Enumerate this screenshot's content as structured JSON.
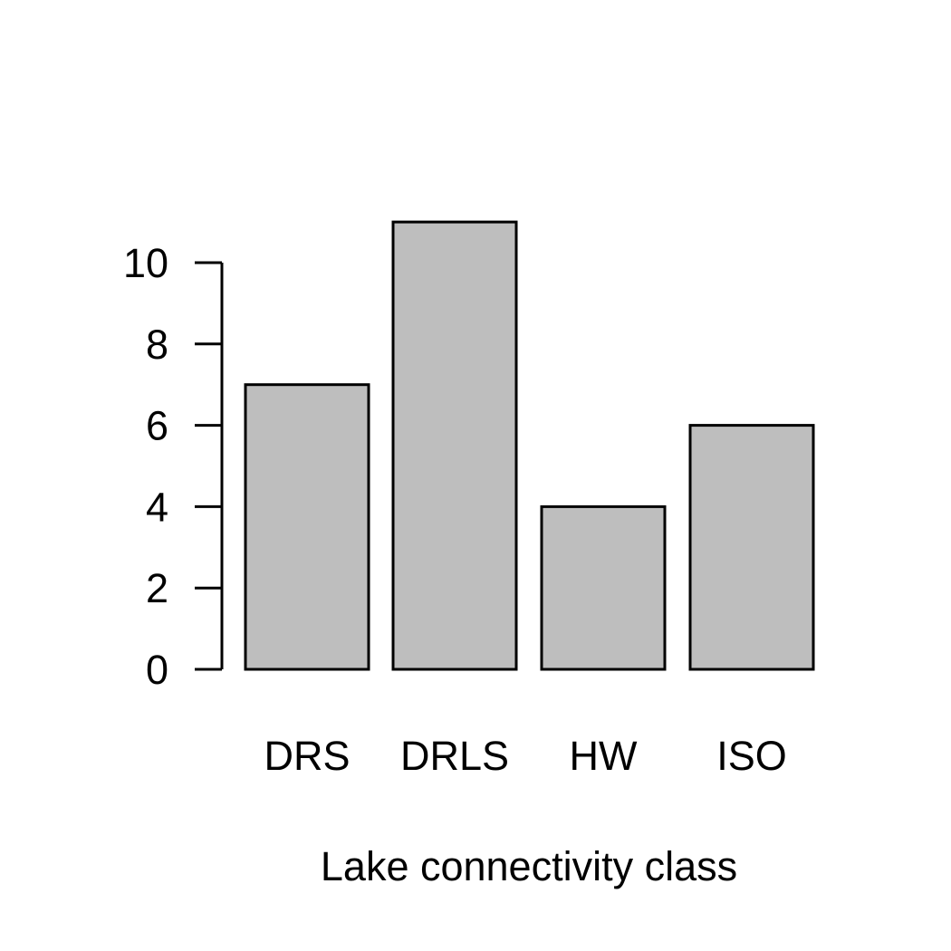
{
  "chart_data": {
    "type": "bar",
    "title": "",
    "xlabel": "Lake connectivity class",
    "ylabel": "",
    "categories": [
      "DRS",
      "DRLS",
      "HW",
      "ISO"
    ],
    "values": [
      7,
      11,
      4,
      6
    ],
    "ylim": [
      0,
      10
    ],
    "yticks": [
      0,
      2,
      4,
      6,
      8,
      10
    ],
    "grid": false,
    "legend": "none",
    "colors": {
      "bar_fill": "#bebebe",
      "bar_stroke": "#000000",
      "axis": "#000000",
      "background": "#ffffff"
    }
  }
}
